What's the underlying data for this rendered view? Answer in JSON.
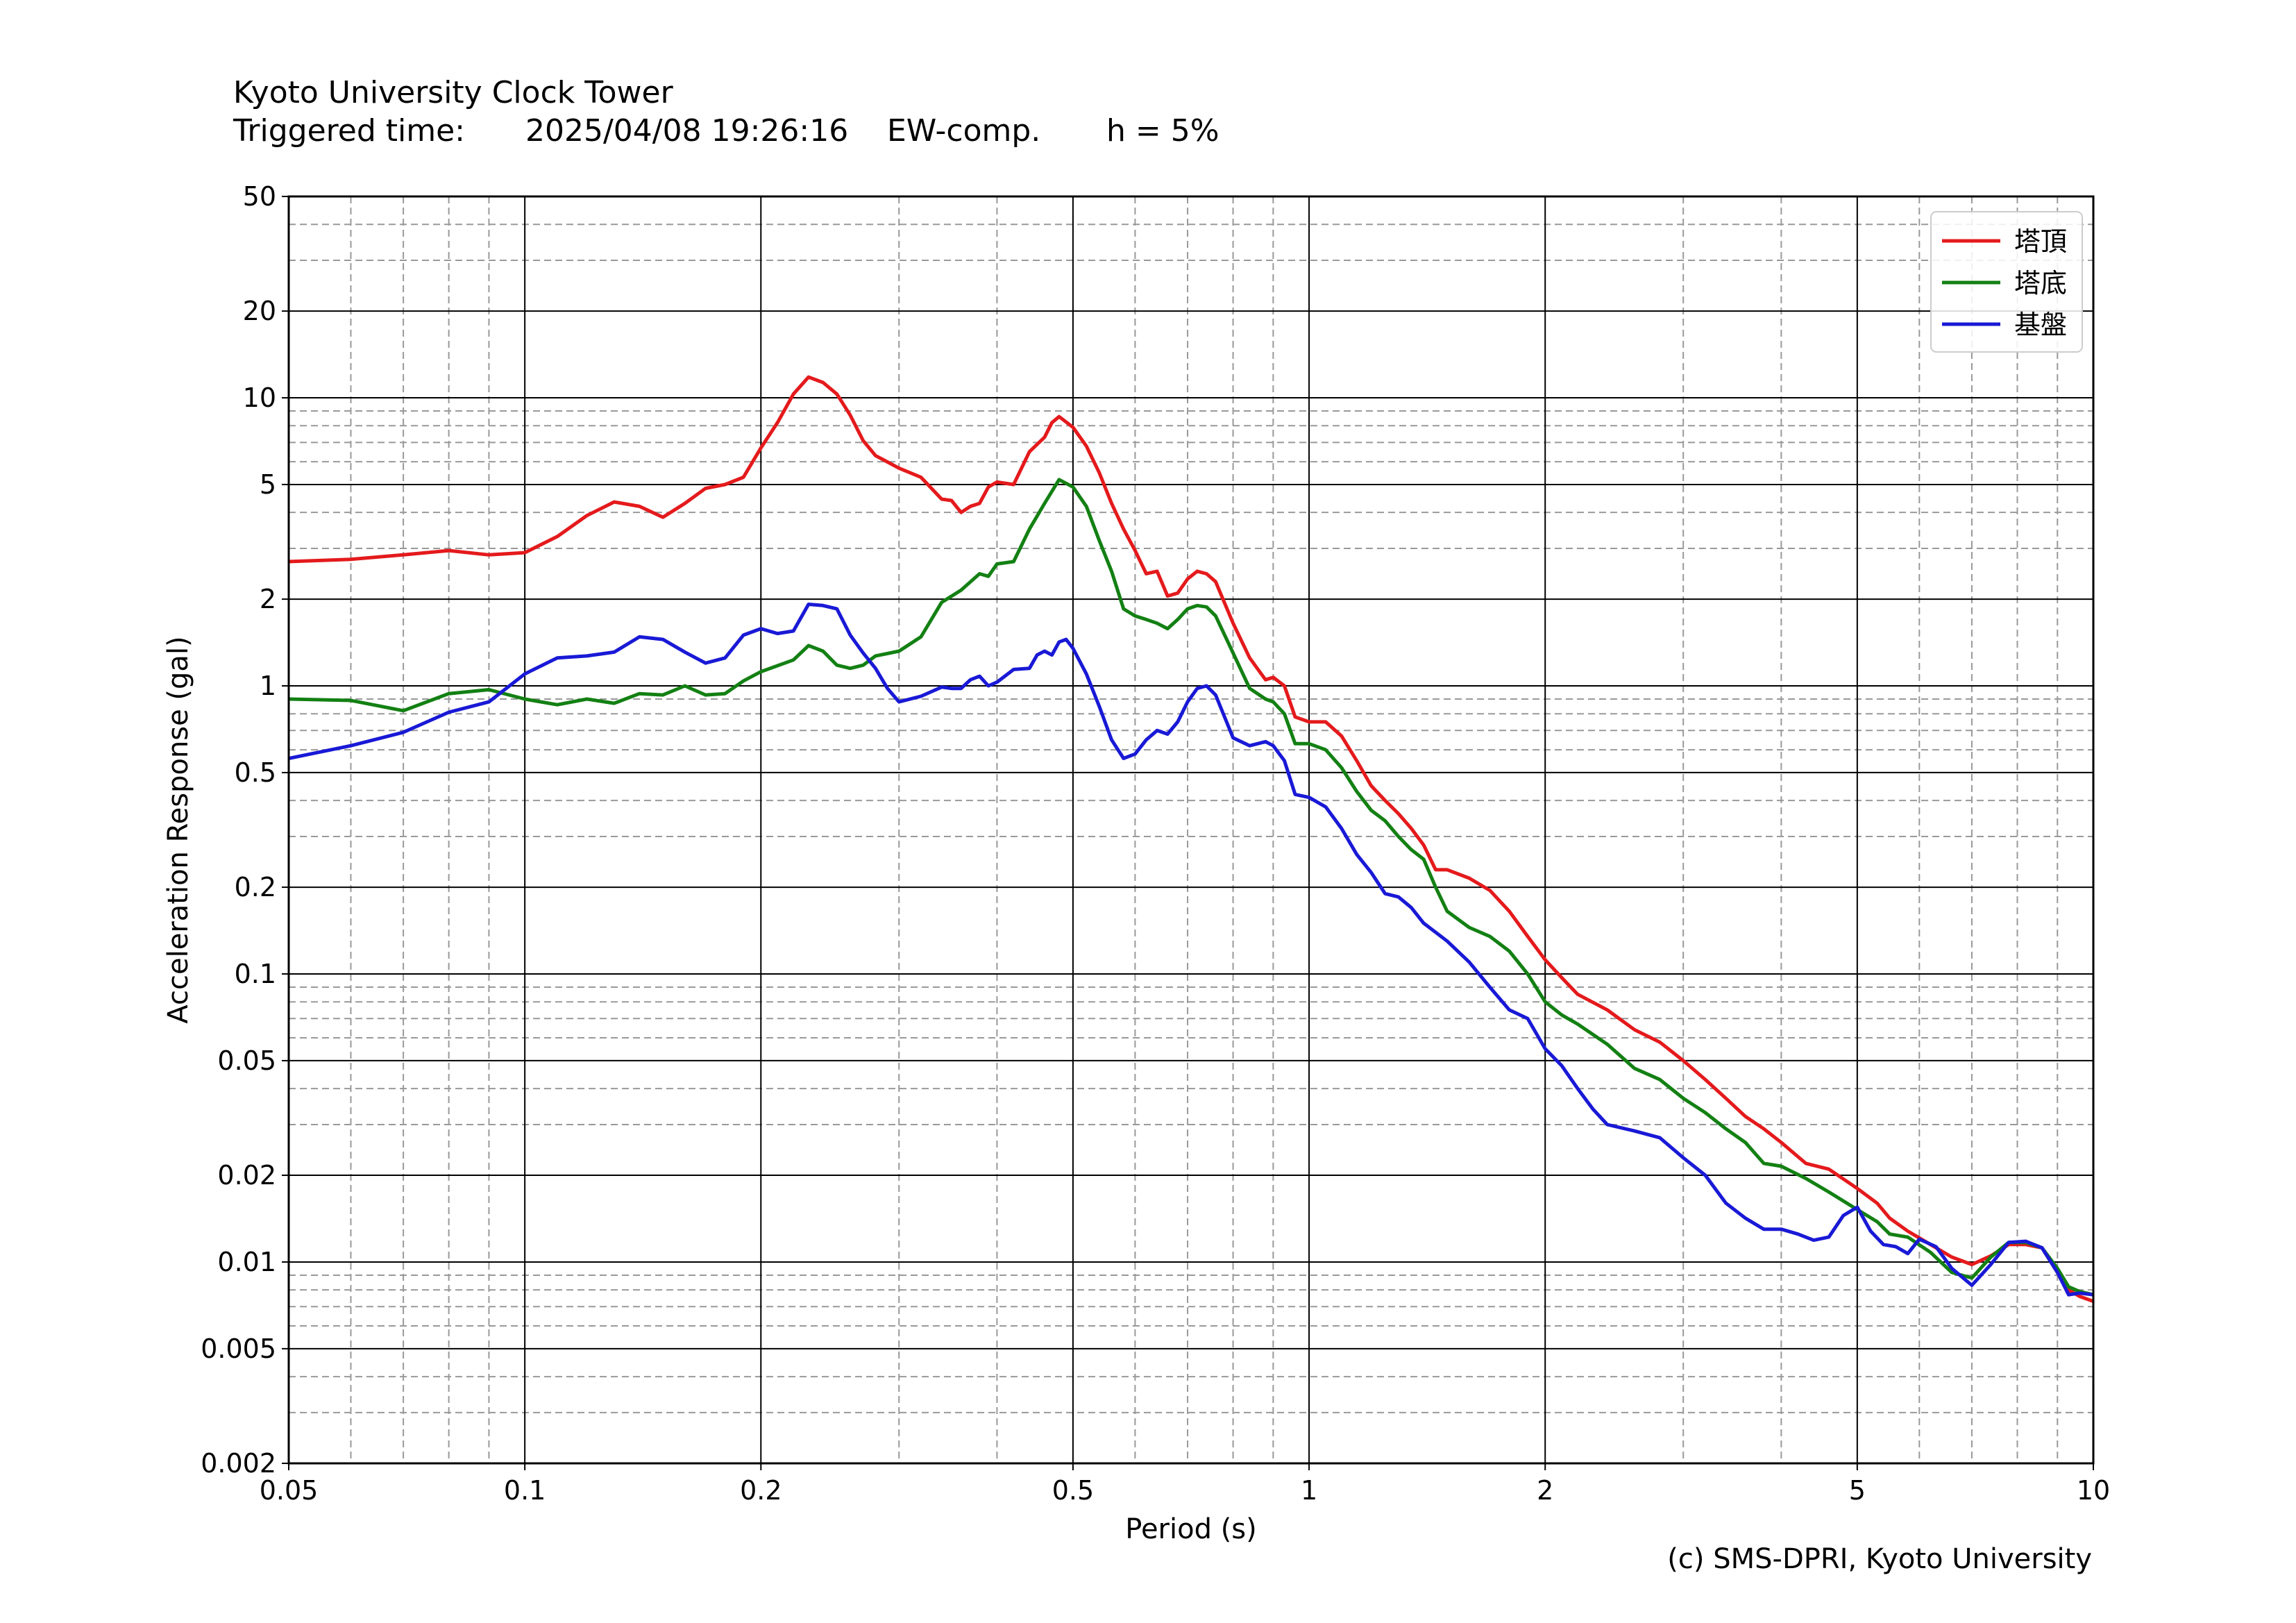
{
  "header": {
    "title": "Kyoto University Clock Tower",
    "triggered_label": "Triggered time:",
    "triggered_time": "2025/04/08 19:26:16",
    "component": "EW-comp.",
    "damping": "h = 5%"
  },
  "footer": {
    "credit": "(c) SMS-DPRI, Kyoto University"
  },
  "chart_data": {
    "type": "line",
    "xscale": "log",
    "yscale": "log",
    "xlabel": "Period (s)",
    "ylabel": "Acceleration Response (gal)",
    "xlim": [
      0.05,
      10
    ],
    "ylim": [
      0.002,
      50
    ],
    "xticks": [
      0.05,
      0.1,
      0.2,
      0.5,
      1,
      2,
      5,
      10
    ],
    "xtick_labels": [
      "0.05",
      "0.1",
      "0.2",
      "0.5",
      "1",
      "2",
      "5",
      "10"
    ],
    "yticks": [
      0.002,
      0.005,
      0.01,
      0.02,
      0.05,
      0.1,
      0.2,
      0.5,
      1,
      2,
      5,
      10,
      20,
      50
    ],
    "ytick_labels": [
      "0.002",
      "0.005",
      "0.01",
      "0.02",
      "0.05",
      "0.1",
      "0.2",
      "0.5",
      "1",
      "2",
      "5",
      "10",
      "20",
      "50"
    ],
    "grid": true,
    "legend_position": "top-right",
    "series": [
      {
        "name": "塔頂",
        "color": "#e41a1c",
        "points": [
          [
            0.05,
            2.7
          ],
          [
            0.06,
            2.75
          ],
          [
            0.07,
            2.85
          ],
          [
            0.08,
            2.95
          ],
          [
            0.09,
            2.85
          ],
          [
            0.1,
            2.9
          ],
          [
            0.11,
            3.3
          ],
          [
            0.12,
            3.9
          ],
          [
            0.13,
            4.35
          ],
          [
            0.14,
            4.2
          ],
          [
            0.15,
            3.85
          ],
          [
            0.16,
            4.3
          ],
          [
            0.17,
            4.85
          ],
          [
            0.18,
            5.0
          ],
          [
            0.19,
            5.3
          ],
          [
            0.2,
            6.7
          ],
          [
            0.21,
            8.2
          ],
          [
            0.22,
            10.3
          ],
          [
            0.23,
            11.8
          ],
          [
            0.24,
            11.3
          ],
          [
            0.25,
            10.3
          ],
          [
            0.26,
            8.7
          ],
          [
            0.27,
            7.1
          ],
          [
            0.28,
            6.3
          ],
          [
            0.3,
            5.7
          ],
          [
            0.32,
            5.3
          ],
          [
            0.34,
            4.45
          ],
          [
            0.35,
            4.4
          ],
          [
            0.36,
            4.0
          ],
          [
            0.37,
            4.2
          ],
          [
            0.38,
            4.3
          ],
          [
            0.39,
            4.9
          ],
          [
            0.4,
            5.1
          ],
          [
            0.42,
            5.0
          ],
          [
            0.44,
            6.5
          ],
          [
            0.46,
            7.3
          ],
          [
            0.47,
            8.2
          ],
          [
            0.48,
            8.6
          ],
          [
            0.5,
            7.9
          ],
          [
            0.52,
            6.8
          ],
          [
            0.54,
            5.5
          ],
          [
            0.56,
            4.3
          ],
          [
            0.58,
            3.5
          ],
          [
            0.6,
            2.95
          ],
          [
            0.62,
            2.45
          ],
          [
            0.64,
            2.5
          ],
          [
            0.66,
            2.05
          ],
          [
            0.68,
            2.1
          ],
          [
            0.7,
            2.35
          ],
          [
            0.72,
            2.5
          ],
          [
            0.74,
            2.45
          ],
          [
            0.76,
            2.3
          ],
          [
            0.8,
            1.65
          ],
          [
            0.84,
            1.25
          ],
          [
            0.88,
            1.05
          ],
          [
            0.9,
            1.07
          ],
          [
            0.93,
            1.0
          ],
          [
            0.96,
            0.78
          ],
          [
            1.0,
            0.75
          ],
          [
            1.05,
            0.75
          ],
          [
            1.1,
            0.67
          ],
          [
            1.15,
            0.55
          ],
          [
            1.2,
            0.45
          ],
          [
            1.25,
            0.4
          ],
          [
            1.3,
            0.36
          ],
          [
            1.35,
            0.32
          ],
          [
            1.4,
            0.28
          ],
          [
            1.45,
            0.23
          ],
          [
            1.5,
            0.23
          ],
          [
            1.6,
            0.215
          ],
          [
            1.7,
            0.195
          ],
          [
            1.8,
            0.165
          ],
          [
            1.9,
            0.135
          ],
          [
            2.0,
            0.112
          ],
          [
            2.1,
            0.097
          ],
          [
            2.2,
            0.085
          ],
          [
            2.4,
            0.075
          ],
          [
            2.6,
            0.064
          ],
          [
            2.8,
            0.058
          ],
          [
            3.0,
            0.05
          ],
          [
            3.2,
            0.043
          ],
          [
            3.4,
            0.037
          ],
          [
            3.6,
            0.032
          ],
          [
            3.8,
            0.029
          ],
          [
            4.0,
            0.026
          ],
          [
            4.3,
            0.022
          ],
          [
            4.6,
            0.021
          ],
          [
            5.0,
            0.018
          ],
          [
            5.3,
            0.016
          ],
          [
            5.5,
            0.0142
          ],
          [
            5.8,
            0.0128
          ],
          [
            6.2,
            0.0115
          ],
          [
            6.6,
            0.0104
          ],
          [
            7.0,
            0.0098
          ],
          [
            7.4,
            0.0105
          ],
          [
            7.8,
            0.0115
          ],
          [
            8.2,
            0.0115
          ],
          [
            8.6,
            0.0112
          ],
          [
            9.0,
            0.0092
          ],
          [
            9.3,
            0.008
          ],
          [
            9.6,
            0.0076
          ],
          [
            10.0,
            0.0073
          ]
        ]
      },
      {
        "name": "塔底",
        "color": "#138013",
        "points": [
          [
            0.05,
            0.9
          ],
          [
            0.06,
            0.89
          ],
          [
            0.07,
            0.82
          ],
          [
            0.08,
            0.94
          ],
          [
            0.09,
            0.97
          ],
          [
            0.1,
            0.9
          ],
          [
            0.11,
            0.86
          ],
          [
            0.12,
            0.9
          ],
          [
            0.13,
            0.87
          ],
          [
            0.14,
            0.94
          ],
          [
            0.15,
            0.93
          ],
          [
            0.16,
            1.0
          ],
          [
            0.17,
            0.93
          ],
          [
            0.18,
            0.94
          ],
          [
            0.19,
            1.04
          ],
          [
            0.2,
            1.12
          ],
          [
            0.22,
            1.23
          ],
          [
            0.23,
            1.38
          ],
          [
            0.24,
            1.32
          ],
          [
            0.25,
            1.18
          ],
          [
            0.26,
            1.15
          ],
          [
            0.27,
            1.18
          ],
          [
            0.28,
            1.27
          ],
          [
            0.3,
            1.32
          ],
          [
            0.32,
            1.48
          ],
          [
            0.34,
            1.95
          ],
          [
            0.36,
            2.15
          ],
          [
            0.38,
            2.45
          ],
          [
            0.39,
            2.4
          ],
          [
            0.4,
            2.65
          ],
          [
            0.42,
            2.7
          ],
          [
            0.44,
            3.5
          ],
          [
            0.46,
            4.3
          ],
          [
            0.48,
            5.2
          ],
          [
            0.5,
            4.9
          ],
          [
            0.52,
            4.2
          ],
          [
            0.54,
            3.2
          ],
          [
            0.56,
            2.5
          ],
          [
            0.58,
            1.85
          ],
          [
            0.6,
            1.75
          ],
          [
            0.62,
            1.7
          ],
          [
            0.64,
            1.65
          ],
          [
            0.66,
            1.58
          ],
          [
            0.68,
            1.7
          ],
          [
            0.7,
            1.85
          ],
          [
            0.72,
            1.9
          ],
          [
            0.74,
            1.88
          ],
          [
            0.76,
            1.75
          ],
          [
            0.8,
            1.3
          ],
          [
            0.84,
            0.98
          ],
          [
            0.88,
            0.9
          ],
          [
            0.9,
            0.88
          ],
          [
            0.93,
            0.8
          ],
          [
            0.96,
            0.63
          ],
          [
            1.0,
            0.63
          ],
          [
            1.05,
            0.6
          ],
          [
            1.1,
            0.52
          ],
          [
            1.15,
            0.43
          ],
          [
            1.2,
            0.37
          ],
          [
            1.25,
            0.34
          ],
          [
            1.3,
            0.3
          ],
          [
            1.35,
            0.27
          ],
          [
            1.4,
            0.25
          ],
          [
            1.45,
            0.2
          ],
          [
            1.5,
            0.165
          ],
          [
            1.6,
            0.145
          ],
          [
            1.7,
            0.135
          ],
          [
            1.8,
            0.12
          ],
          [
            1.9,
            0.1
          ],
          [
            2.0,
            0.08
          ],
          [
            2.1,
            0.072
          ],
          [
            2.2,
            0.067
          ],
          [
            2.4,
            0.057
          ],
          [
            2.6,
            0.047
          ],
          [
            2.8,
            0.043
          ],
          [
            3.0,
            0.037
          ],
          [
            3.2,
            0.033
          ],
          [
            3.4,
            0.029
          ],
          [
            3.6,
            0.026
          ],
          [
            3.8,
            0.022
          ],
          [
            4.0,
            0.0215
          ],
          [
            4.3,
            0.0195
          ],
          [
            4.6,
            0.0175
          ],
          [
            5.0,
            0.0152
          ],
          [
            5.3,
            0.0138
          ],
          [
            5.5,
            0.0125
          ],
          [
            5.8,
            0.0122
          ],
          [
            6.2,
            0.0108
          ],
          [
            6.6,
            0.0092
          ],
          [
            7.0,
            0.0088
          ],
          [
            7.4,
            0.0104
          ],
          [
            7.8,
            0.0117
          ],
          [
            8.2,
            0.0117
          ],
          [
            8.6,
            0.0112
          ],
          [
            9.0,
            0.0095
          ],
          [
            9.3,
            0.0082
          ],
          [
            9.6,
            0.0079
          ],
          [
            10.0,
            0.0077
          ]
        ]
      },
      {
        "name": "基盤",
        "color": "#1919d6",
        "points": [
          [
            0.05,
            0.56
          ],
          [
            0.06,
            0.62
          ],
          [
            0.07,
            0.69
          ],
          [
            0.08,
            0.81
          ],
          [
            0.09,
            0.88
          ],
          [
            0.1,
            1.1
          ],
          [
            0.11,
            1.25
          ],
          [
            0.12,
            1.27
          ],
          [
            0.13,
            1.31
          ],
          [
            0.14,
            1.48
          ],
          [
            0.15,
            1.45
          ],
          [
            0.16,
            1.31
          ],
          [
            0.17,
            1.2
          ],
          [
            0.18,
            1.25
          ],
          [
            0.19,
            1.5
          ],
          [
            0.2,
            1.58
          ],
          [
            0.21,
            1.52
          ],
          [
            0.22,
            1.55
          ],
          [
            0.23,
            1.92
          ],
          [
            0.24,
            1.9
          ],
          [
            0.25,
            1.85
          ],
          [
            0.26,
            1.5
          ],
          [
            0.27,
            1.3
          ],
          [
            0.28,
            1.15
          ],
          [
            0.29,
            0.98
          ],
          [
            0.3,
            0.88
          ],
          [
            0.32,
            0.92
          ],
          [
            0.34,
            0.99
          ],
          [
            0.35,
            0.98
          ],
          [
            0.36,
            0.98
          ],
          [
            0.37,
            1.05
          ],
          [
            0.38,
            1.08
          ],
          [
            0.39,
            1.0
          ],
          [
            0.4,
            1.03
          ],
          [
            0.42,
            1.14
          ],
          [
            0.44,
            1.15
          ],
          [
            0.45,
            1.28
          ],
          [
            0.46,
            1.32
          ],
          [
            0.47,
            1.28
          ],
          [
            0.48,
            1.42
          ],
          [
            0.49,
            1.45
          ],
          [
            0.5,
            1.35
          ],
          [
            0.52,
            1.1
          ],
          [
            0.54,
            0.85
          ],
          [
            0.56,
            0.65
          ],
          [
            0.58,
            0.56
          ],
          [
            0.6,
            0.58
          ],
          [
            0.62,
            0.65
          ],
          [
            0.64,
            0.7
          ],
          [
            0.66,
            0.68
          ],
          [
            0.68,
            0.75
          ],
          [
            0.7,
            0.88
          ],
          [
            0.72,
            0.98
          ],
          [
            0.74,
            1.0
          ],
          [
            0.76,
            0.93
          ],
          [
            0.8,
            0.66
          ],
          [
            0.84,
            0.62
          ],
          [
            0.88,
            0.64
          ],
          [
            0.9,
            0.62
          ],
          [
            0.93,
            0.55
          ],
          [
            0.96,
            0.42
          ],
          [
            1.0,
            0.41
          ],
          [
            1.05,
            0.38
          ],
          [
            1.1,
            0.32
          ],
          [
            1.15,
            0.26
          ],
          [
            1.2,
            0.225
          ],
          [
            1.25,
            0.19
          ],
          [
            1.3,
            0.185
          ],
          [
            1.35,
            0.17
          ],
          [
            1.4,
            0.15
          ],
          [
            1.5,
            0.13
          ],
          [
            1.6,
            0.11
          ],
          [
            1.7,
            0.09
          ],
          [
            1.8,
            0.075
          ],
          [
            1.9,
            0.07
          ],
          [
            2.0,
            0.055
          ],
          [
            2.1,
            0.048
          ],
          [
            2.2,
            0.04
          ],
          [
            2.3,
            0.034
          ],
          [
            2.4,
            0.03
          ],
          [
            2.6,
            0.0285
          ],
          [
            2.8,
            0.027
          ],
          [
            3.0,
            0.023
          ],
          [
            3.2,
            0.02
          ],
          [
            3.4,
            0.016
          ],
          [
            3.6,
            0.0142
          ],
          [
            3.8,
            0.013
          ],
          [
            4.0,
            0.013
          ],
          [
            4.2,
            0.0125
          ],
          [
            4.4,
            0.0119
          ],
          [
            4.6,
            0.0122
          ],
          [
            4.8,
            0.0145
          ],
          [
            5.0,
            0.0155
          ],
          [
            5.2,
            0.0128
          ],
          [
            5.4,
            0.0115
          ],
          [
            5.6,
            0.0113
          ],
          [
            5.8,
            0.0107
          ],
          [
            6.0,
            0.012
          ],
          [
            6.3,
            0.0113
          ],
          [
            6.6,
            0.0095
          ],
          [
            7.0,
            0.0083
          ],
          [
            7.4,
            0.0098
          ],
          [
            7.8,
            0.0117
          ],
          [
            8.2,
            0.0118
          ],
          [
            8.6,
            0.0112
          ],
          [
            9.0,
            0.0092
          ],
          [
            9.3,
            0.0077
          ],
          [
            9.6,
            0.0078
          ],
          [
            10.0,
            0.0077
          ]
        ]
      }
    ]
  }
}
